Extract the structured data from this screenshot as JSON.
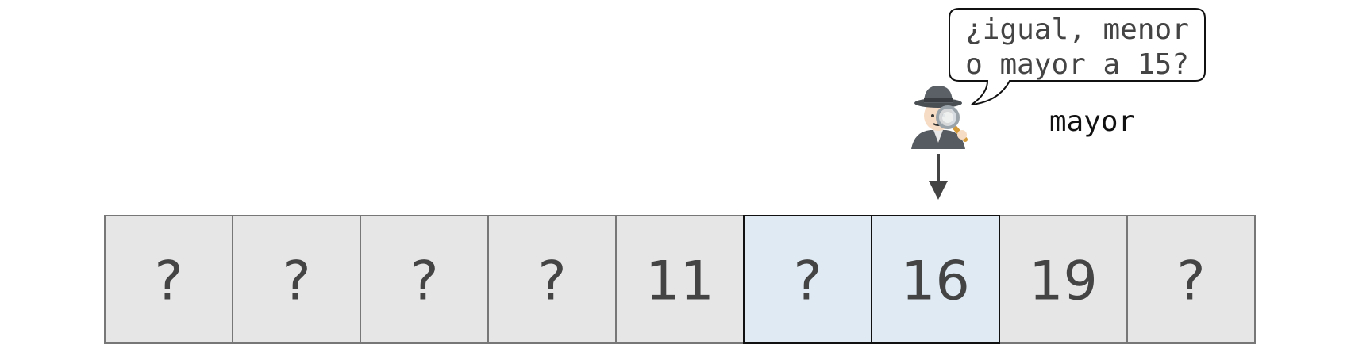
{
  "question": {
    "lines": [
      "¿igual, menor",
      "o mayor a 15?"
    ]
  },
  "answer": "mayor",
  "detective": {
    "icon": "detective-icon",
    "pointer_icon": "down-arrow-icon",
    "pointed_index": 6
  },
  "array": {
    "cells": [
      {
        "label": "?",
        "highlighted": false
      },
      {
        "label": "?",
        "highlighted": false
      },
      {
        "label": "?",
        "highlighted": false
      },
      {
        "label": "?",
        "highlighted": false
      },
      {
        "label": "11",
        "highlighted": false
      },
      {
        "label": "?",
        "highlighted": true
      },
      {
        "label": "16",
        "highlighted": true
      },
      {
        "label": "19",
        "highlighted": false
      },
      {
        "label": "?",
        "highlighted": false
      }
    ]
  },
  "colors": {
    "cell_fill": "#e6e6e6",
    "cell_fill_highlight": "#dfeaf3",
    "cell_border": "#777777",
    "cell_border_highlight": "#111111",
    "text": "#444444",
    "arrow": "#444444"
  }
}
